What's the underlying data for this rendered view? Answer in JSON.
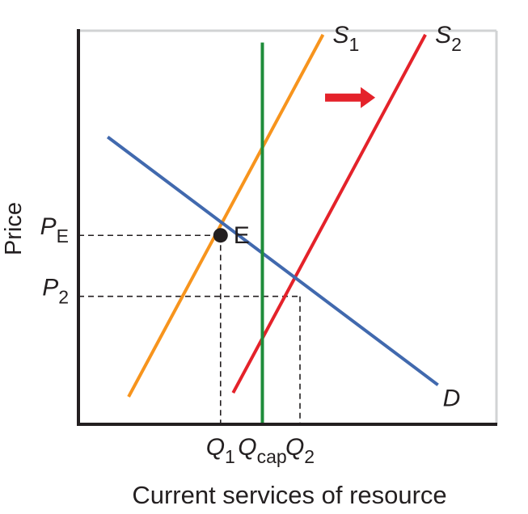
{
  "chart_data": {
    "type": "line",
    "title": "",
    "xlabel": "Current services of resource",
    "ylabel": "Price",
    "xlim": [
      0,
      10
    ],
    "ylim": [
      0,
      10
    ],
    "grid": false,
    "series": [
      {
        "name": "S",
        "sub": "1",
        "color": "#f7941d",
        "points": [
          [
            1.2,
            0.7
          ],
          [
            5.85,
            9.9
          ]
        ]
      },
      {
        "name": "S",
        "sub": "2",
        "color": "#e4222a",
        "points": [
          [
            3.7,
            0.8
          ],
          [
            8.3,
            9.9
          ]
        ]
      },
      {
        "name": "D",
        "sub": "",
        "color": "#4169ae",
        "points": [
          [
            0.7,
            7.3
          ],
          [
            8.6,
            1.0
          ]
        ]
      },
      {
        "name": "",
        "sub": "",
        "color": "#1e8c3a",
        "points": [
          [
            4.4,
            0.0
          ],
          [
            4.4,
            9.7
          ]
        ]
      }
    ],
    "point": {
      "label": "E",
      "x": 3.4,
      "y": 4.8
    },
    "guides": [
      {
        "x": 3.4,
        "y": 4.8,
        "xtick": {
          "main": "Q",
          "sub": "1"
        },
        "ytick": {
          "main": "P",
          "sub": "E"
        }
      },
      {
        "x": 5.3,
        "y": 3.25,
        "xtick": {
          "main": "Q",
          "sub": "2"
        },
        "ytick": {
          "main": "P",
          "sub": "2"
        }
      }
    ],
    "extra_xtick": {
      "x": 4.4,
      "main": "Q",
      "sub": "cap"
    },
    "arrow": {
      "from": [
        5.9,
        8.3
      ],
      "to": [
        7.1,
        8.3
      ],
      "color": "#e4222a"
    }
  }
}
